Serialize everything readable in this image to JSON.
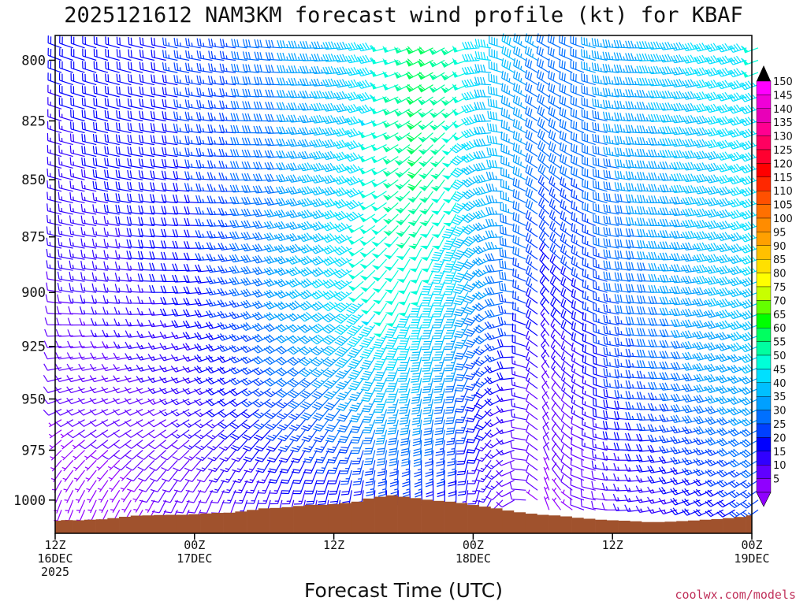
{
  "chart_data": {
    "type": "wind-barb-time-height",
    "title": "2025121612 NAM3KM forecast wind profile (kt) for KBAF",
    "xlabel": "Forecast Time (UTC)",
    "ylabel": "",
    "credit": "coolwx.com/models",
    "x_range_hours": [
      0,
      60
    ],
    "y_range_hpa": [
      790,
      1017
    ],
    "y_scale": "log-pressure",
    "y_ticks": [
      800,
      825,
      850,
      875,
      900,
      925,
      950,
      975,
      1000
    ],
    "x_ticks": [
      {
        "hour": 0,
        "lines": [
          "12Z",
          "16DEC",
          "2025"
        ]
      },
      {
        "hour": 12,
        "lines": [
          "00Z",
          "17DEC"
        ]
      },
      {
        "hour": 24,
        "lines": [
          "12Z"
        ]
      },
      {
        "hour": 36,
        "lines": [
          "00Z",
          "18DEC"
        ]
      },
      {
        "hour": 48,
        "lines": [
          "12Z"
        ]
      },
      {
        "hour": 60,
        "lines": [
          "00Z",
          "19DEC"
        ]
      }
    ],
    "surface_pressure_hpa": {
      "hours": [
        0,
        1,
        2,
        3,
        4,
        5,
        6,
        7,
        8,
        9,
        10,
        11,
        12,
        13,
        14,
        15,
        16,
        17,
        18,
        19,
        20,
        21,
        22,
        23,
        24,
        25,
        26,
        27,
        28,
        29,
        30,
        31,
        32,
        33,
        34,
        35,
        36,
        37,
        38,
        39,
        40,
        41,
        42,
        43,
        44,
        45,
        46,
        47,
        48,
        49,
        50,
        51,
        52,
        53,
        54,
        55,
        56,
        57,
        58,
        59,
        60
      ],
      "values": [
        1010.5,
        1010.2,
        1010.3,
        1010,
        1009.8,
        1009.2,
        1008.5,
        1007.9,
        1007.8,
        1007.6,
        1007.5,
        1007.5,
        1007.2,
        1006.8,
        1006.5,
        1006.4,
        1005.8,
        1005.0,
        1004.2,
        1004.0,
        1003.6,
        1003.0,
        1002.4,
        1002.4,
        1002.1,
        1001.5,
        1000.8,
        999.2,
        998.3,
        997.6,
        998.3,
        999.0,
        999.8,
        1000.4,
        1000.8,
        1001.5,
        1002.5,
        1003.3,
        1004.2,
        1005.3,
        1006.2,
        1006.9,
        1007.5,
        1007.8,
        1008.3,
        1009.0,
        1009.5,
        1010.0,
        1010.3,
        1010.5,
        1010.8,
        1011.2,
        1011.2,
        1011.0,
        1010.7,
        1010.4,
        1010.0,
        1009.7,
        1009.2,
        1008.6,
        1007.8
      ]
    },
    "wind_series_note": "Each column is one forecast hour; barbs at 5 hPa steps from 795 to 1015 hPa above the surface.",
    "wind_speed_kt": {
      "hours": [
        0,
        6,
        12,
        18,
        24,
        28,
        31,
        34,
        36,
        39,
        42,
        45,
        48,
        54,
        60
      ],
      "levels_hpa": [
        800,
        850,
        900,
        950,
        1000
      ],
      "values": [
        [
          18,
          20,
          24,
          30,
          38,
          48,
          60,
          55,
          45,
          38,
          30,
          32,
          35,
          42,
          48
        ],
        [
          16,
          19,
          23,
          30,
          42,
          52,
          58,
          50,
          42,
          35,
          28,
          28,
          32,
          38,
          45
        ],
        [
          12,
          16,
          20,
          32,
          45,
          52,
          48,
          42,
          35,
          28,
          20,
          22,
          28,
          35,
          42
        ],
        [
          8,
          10,
          15,
          25,
          32,
          38,
          36,
          30,
          22,
          16,
          10,
          14,
          22,
          30,
          36
        ],
        [
          5,
          6,
          10,
          14,
          18,
          20,
          20,
          18,
          14,
          10,
          6,
          8,
          12,
          18,
          24
        ]
      ]
    },
    "wind_direction_deg": {
      "hours": [
        0,
        6,
        12,
        18,
        24,
        28,
        31,
        34,
        36,
        39,
        42,
        45,
        48,
        54,
        60
      ],
      "levels_hpa": [
        800,
        850,
        900,
        950,
        1000
      ],
      "values": [
        [
          290,
          285,
          280,
          275,
          265,
          255,
          245,
          240,
          265,
          300,
          300,
          290,
          275,
          260,
          250
        ],
        [
          285,
          280,
          275,
          265,
          255,
          240,
          220,
          215,
          240,
          290,
          310,
          295,
          280,
          265,
          250
        ],
        [
          280,
          275,
          265,
          250,
          240,
          215,
          200,
          200,
          220,
          280,
          320,
          300,
          280,
          265,
          250
        ],
        [
          250,
          250,
          245,
          235,
          220,
          200,
          190,
          195,
          210,
          260,
          330,
          300,
          280,
          260,
          245
        ],
        [
          200,
          210,
          205,
          195,
          190,
          180,
          175,
          180,
          195,
          240,
          340,
          290,
          270,
          250,
          235
        ]
      ]
    },
    "colorbar": {
      "min": 5,
      "max": 150,
      "step": 5,
      "labels": [
        "150",
        "145",
        "140",
        "135",
        "130",
        "125",
        "120",
        "115",
        "110",
        "105",
        "100",
        "95",
        "90",
        "85",
        "80",
        "75",
        "70",
        "65",
        "60",
        "55",
        "50",
        "45",
        "40",
        "35",
        "30",
        "25",
        "20",
        "15",
        "10",
        "5"
      ],
      "colors": [
        "#ff00ff",
        "#f000d8",
        "#e800b8",
        "#ff0090",
        "#ff0060",
        "#ff0030",
        "#ff0000",
        "#ff2800",
        "#ff5000",
        "#ff7000",
        "#ff8c00",
        "#ffa000",
        "#ffc000",
        "#ffe000",
        "#ffff00",
        "#c8ff00",
        "#64ff00",
        "#00ff00",
        "#00ff60",
        "#00ffa0",
        "#00ffd8",
        "#00e0ff",
        "#00c0ff",
        "#00a0ff",
        "#0070ff",
        "#0040ff",
        "#0000ff",
        "#3000ff",
        "#6000ff",
        "#9000ff"
      ]
    },
    "colors": {
      "terrain": "#a0522d",
      "frame": "#000000",
      "credit": "#c0305a"
    }
  }
}
